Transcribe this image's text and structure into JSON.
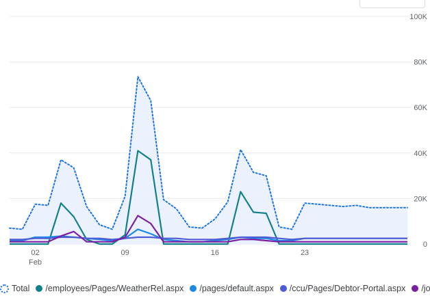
{
  "colors": {
    "total": "#1a73e8",
    "total_fill": "#e8f0fe",
    "grid": "#e8eaed",
    "axis_text": "#5f6368"
  },
  "chart_data": {
    "type": "line",
    "x": [
      "Jan 31",
      "Feb 01",
      "Feb 02",
      "Feb 03",
      "Feb 04",
      "Feb 05",
      "Feb 06",
      "Feb 07",
      "Feb 08",
      "Feb 09",
      "Feb 10",
      "Feb 11",
      "Feb 12",
      "Feb 13",
      "Feb 14",
      "Feb 15",
      "Feb 16",
      "Feb 17",
      "Feb 18",
      "Feb 19",
      "Feb 20",
      "Feb 21",
      "Feb 22",
      "Feb 23",
      "Feb 24",
      "Feb 25",
      "Feb 26",
      "Feb 27",
      "Feb 28",
      "Mar 01",
      "Mar 02",
      "Mar 03"
    ],
    "x_ticks": [
      {
        "index": 2,
        "label": "02",
        "sublabel": "Feb"
      },
      {
        "index": 9,
        "label": "09",
        "sublabel": ""
      },
      {
        "index": 16,
        "label": "16",
        "sublabel": ""
      },
      {
        "index": 23,
        "label": "23",
        "sublabel": ""
      }
    ],
    "y_ticks": [
      "0",
      "20K",
      "40K",
      "60K",
      "80K",
      "100K"
    ],
    "ylim": [
      0,
      100000
    ],
    "grid": true,
    "legend_position": "bottom",
    "series": [
      {
        "name": "Total",
        "color": "#1a73e8",
        "style": "dotted-area",
        "values": [
          7000,
          6500,
          17500,
          17000,
          37000,
          33500,
          16500,
          8500,
          6500,
          21000,
          73500,
          63000,
          19500,
          15500,
          7500,
          7000,
          11000,
          18500,
          41500,
          31500,
          30000,
          7500,
          6500,
          18000,
          17500,
          17000,
          16500,
          17000,
          16000,
          16000,
          16000,
          16000
        ]
      },
      {
        "name": "/employees/Pages/WeatherRel.aspx",
        "color": "#12808c",
        "style": "line",
        "values": [
          0,
          0,
          0,
          0,
          18000,
          12000,
          2000,
          0,
          0,
          4000,
          41000,
          37000,
          0,
          0,
          0,
          0,
          0,
          0,
          23000,
          14000,
          13500,
          0,
          0,
          0,
          0,
          0,
          0,
          0,
          0,
          0,
          0,
          0
        ]
      },
      {
        "name": "/pages/default.aspx",
        "color": "#1e88e5",
        "style": "line",
        "values": [
          1500,
          1500,
          3000,
          3000,
          3500,
          3000,
          2500,
          2000,
          1500,
          2500,
          6500,
          4500,
          2000,
          1500,
          1000,
          1000,
          1500,
          2000,
          3000,
          2500,
          2500,
          1500,
          1500,
          2500,
          2500,
          2500,
          2500,
          2500,
          2500,
          2500,
          2500,
          2500
        ]
      },
      {
        "name": "/ccu/Pages/Debtor-Portal.aspx",
        "color": "#4f5bd5",
        "style": "line",
        "values": [
          2000,
          2000,
          2500,
          2500,
          3000,
          3000,
          2500,
          2500,
          2000,
          2500,
          3000,
          3000,
          2500,
          2500,
          2000,
          2000,
          2000,
          2500,
          3000,
          3000,
          3000,
          2500,
          2000,
          2500,
          2500,
          2500,
          2500,
          2500,
          2500,
          2500,
          2500,
          2500
        ]
      },
      {
        "name": "/jobseekers/Pages/job",
        "color": "#7b1fa2",
        "style": "line",
        "values": [
          1000,
          1000,
          1000,
          1000,
          3500,
          5500,
          1000,
          1000,
          1000,
          3000,
          12500,
          9000,
          1000,
          1000,
          1000,
          1000,
          1000,
          1000,
          2000,
          2000,
          1500,
          1000,
          1000,
          1000,
          1000,
          1000,
          1000,
          1000,
          1000,
          1000,
          1000,
          1000
        ]
      }
    ]
  }
}
